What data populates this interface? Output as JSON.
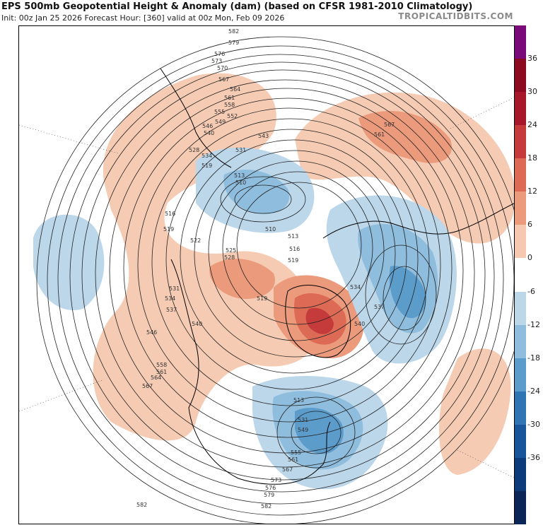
{
  "header": {
    "title": "EPS 500mb Geopotential Height & Anomaly (dam) (based on CFSR 1981-2010 Climatology)",
    "subtitle": "Init: 00z Jan 25 2026   Forecast Hour: [360]   valid at 00z Mon, Feb 09 2026",
    "brand": "TROPICALTIDBITS.COM"
  },
  "colorbar": {
    "ticks": [
      "36",
      "30",
      "24",
      "18",
      "12",
      "6",
      "0",
      "-6",
      "-12",
      "-18",
      "-24",
      "-30",
      "-36"
    ],
    "colors": [
      "#7a0a7a",
      "#8b0a1f",
      "#a8162a",
      "#c53a3a",
      "#dc6a55",
      "#ec9a7c",
      "#f6c8b0",
      "#ffffff",
      "#bcd7ea",
      "#8fbddd",
      "#5c9ccb",
      "#2f75b4",
      "#17549a",
      "#0d3a78",
      "#0b2556"
    ]
  },
  "contour_labels": [
    {
      "text": "582",
      "c": "a"
    },
    {
      "text": "579",
      "c": "a"
    },
    {
      "text": "576",
      "c": "a"
    },
    {
      "text": "573",
      "c": "a"
    },
    {
      "text": "570",
      "c": "a"
    },
    {
      "text": "567",
      "c": "a"
    },
    {
      "text": "564",
      "c": "a"
    },
    {
      "text": "561",
      "c": "a"
    },
    {
      "text": "558",
      "c": "a"
    },
    {
      "text": "555",
      "c": "a"
    },
    {
      "text": "552",
      "c": "a"
    },
    {
      "text": "549",
      "c": "a"
    },
    {
      "text": "546",
      "c": "a"
    },
    {
      "text": "540",
      "c": "a"
    },
    {
      "text": "543",
      "c": "a"
    },
    {
      "text": "528",
      "c": "a"
    },
    {
      "text": "534",
      "c": "a"
    },
    {
      "text": "531",
      "c": "a"
    },
    {
      "text": "519",
      "c": "a"
    },
    {
      "text": "513",
      "c": "a"
    },
    {
      "text": "510",
      "c": "a"
    },
    {
      "text": "567",
      "c": "b"
    },
    {
      "text": "561",
      "c": "b"
    },
    {
      "text": "516",
      "c": "c"
    },
    {
      "text": "519",
      "c": "c"
    },
    {
      "text": "522",
      "c": "c"
    },
    {
      "text": "525",
      "c": "c"
    },
    {
      "text": "528",
      "c": "c"
    },
    {
      "text": "510",
      "c": "d"
    },
    {
      "text": "513",
      "c": "d"
    },
    {
      "text": "516",
      "c": "d"
    },
    {
      "text": "519",
      "c": "d"
    },
    {
      "text": "534",
      "c": "e"
    },
    {
      "text": "537",
      "c": "e"
    },
    {
      "text": "540",
      "c": "e"
    },
    {
      "text": "519",
      "c": "f"
    },
    {
      "text": "531",
      "c": "g"
    },
    {
      "text": "534",
      "c": "g"
    },
    {
      "text": "537",
      "c": "g"
    },
    {
      "text": "540",
      "c": "g"
    },
    {
      "text": "546",
      "c": "g"
    },
    {
      "text": "558",
      "c": "g"
    },
    {
      "text": "561",
      "c": "g"
    },
    {
      "text": "564",
      "c": "g"
    },
    {
      "text": "567",
      "c": "g"
    },
    {
      "text": "513",
      "c": "h"
    },
    {
      "text": "531",
      "c": "h"
    },
    {
      "text": "549",
      "c": "h"
    },
    {
      "text": "555",
      "c": "h"
    },
    {
      "text": "561",
      "c": "h"
    },
    {
      "text": "567",
      "c": "h"
    },
    {
      "text": "573",
      "c": "h"
    },
    {
      "text": "576",
      "c": "h"
    },
    {
      "text": "579",
      "c": "h"
    },
    {
      "text": "582",
      "c": "h"
    },
    {
      "text": "582",
      "c": "i"
    }
  ]
}
